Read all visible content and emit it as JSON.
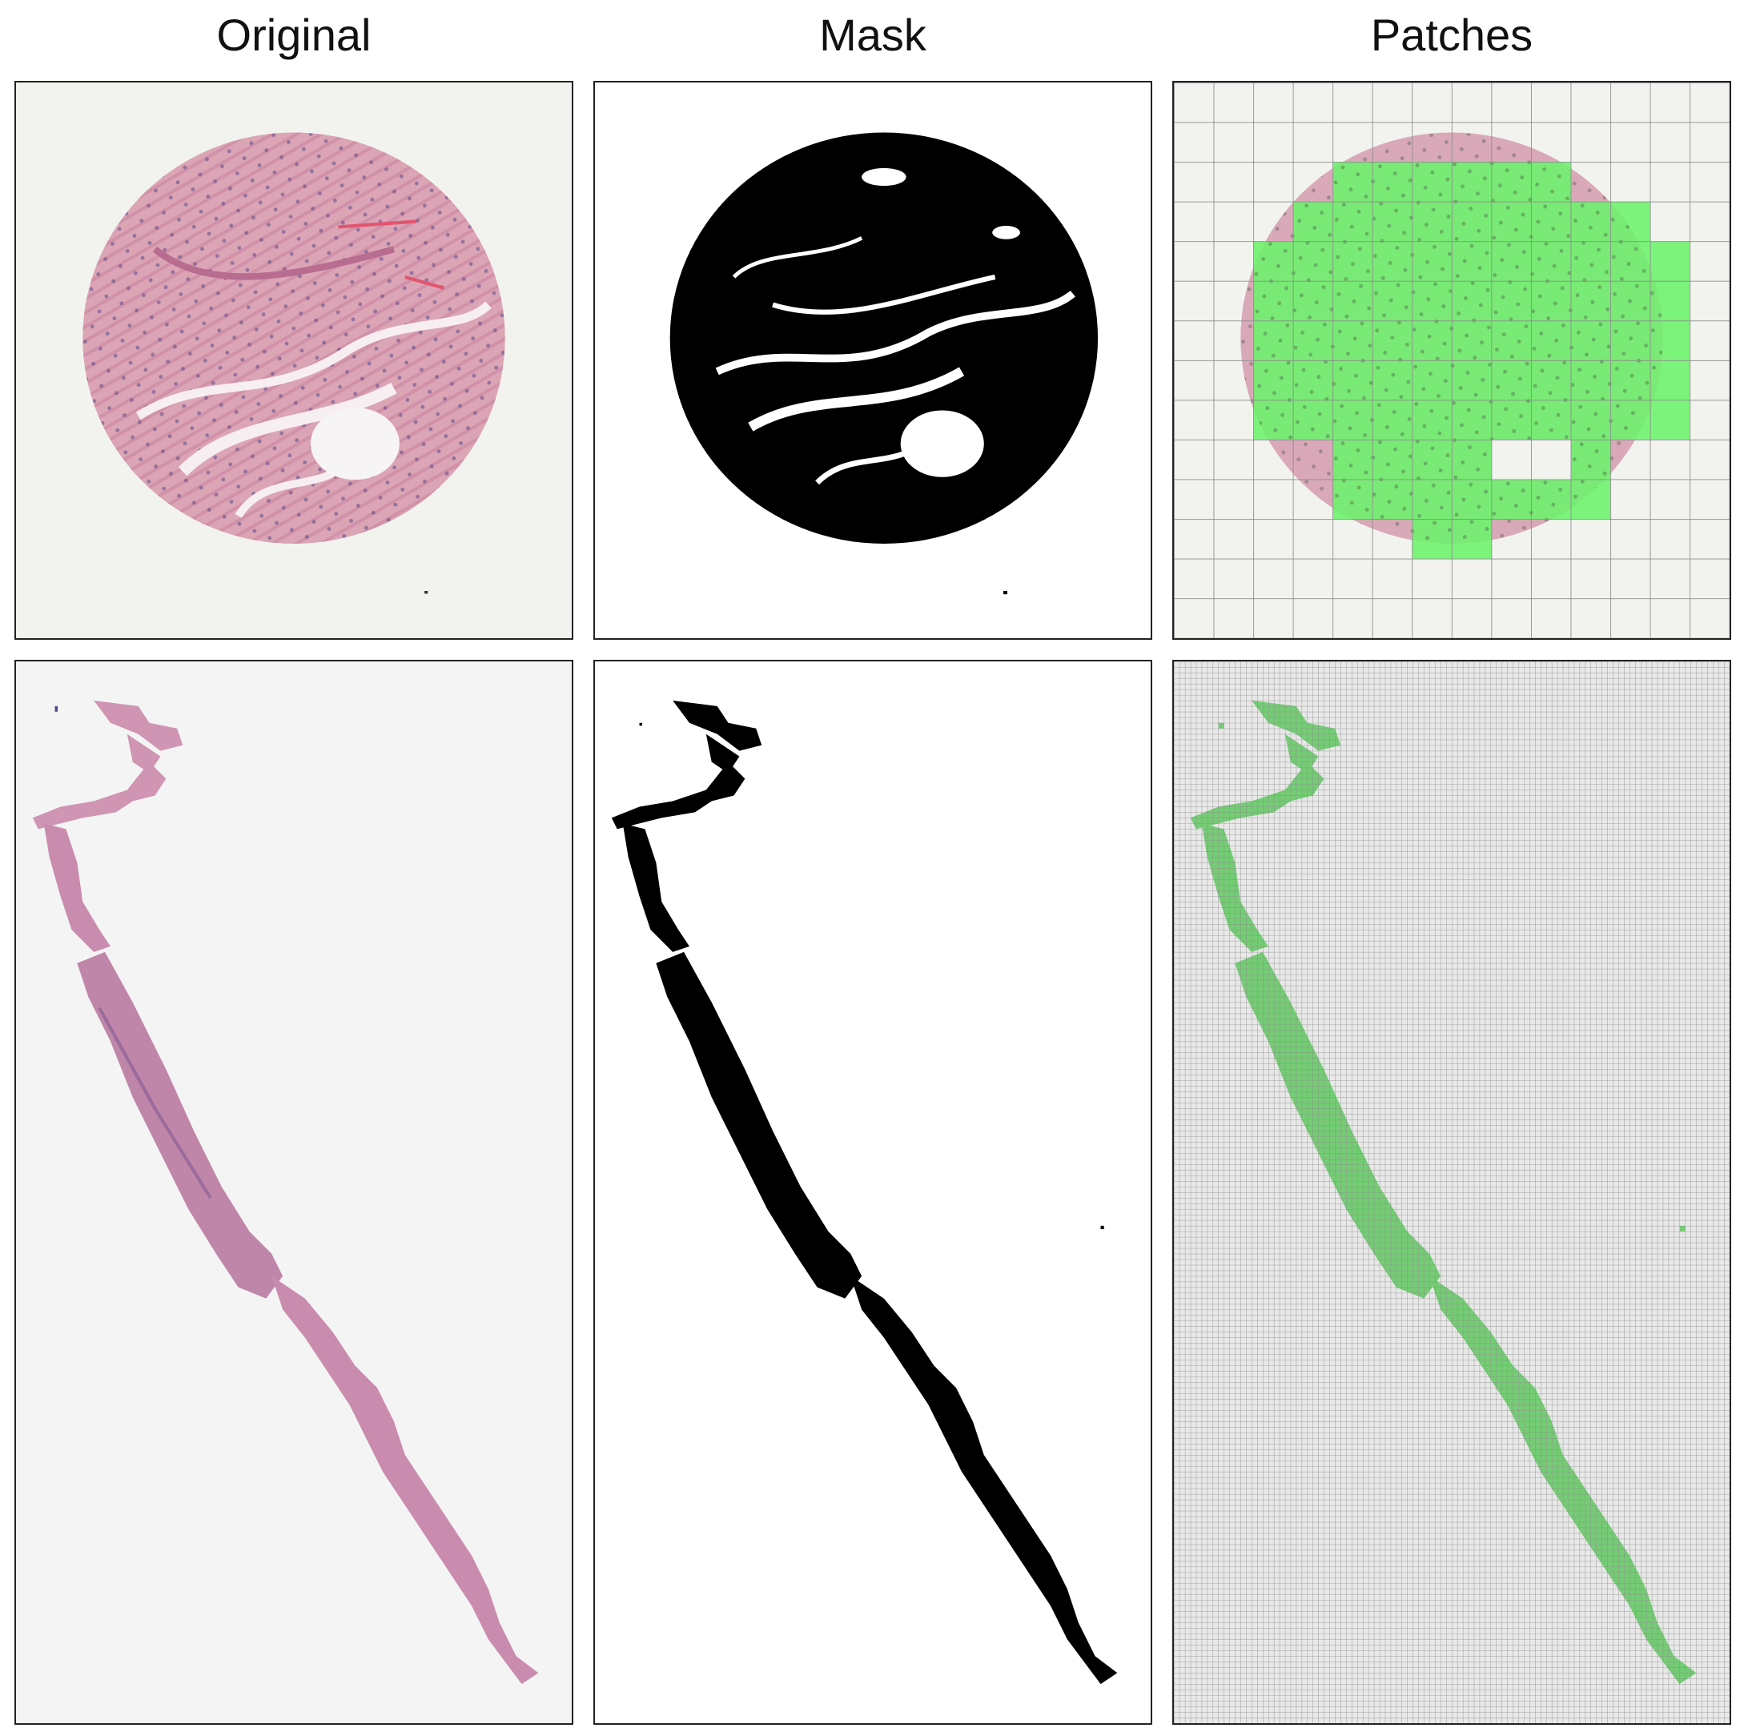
{
  "columns": {
    "original": "Original",
    "mask": "Mask",
    "patches": "Patches"
  },
  "colors": {
    "slide_background": "#f2f3ef",
    "tissue_pink": "#d9a1b3",
    "nuclei_purple": "#5e4a87",
    "mask_foreground": "#000000",
    "mask_background": "#ffffff",
    "patch_selected": "#6bf26b",
    "grid_line": "#8c8c8c"
  }
}
